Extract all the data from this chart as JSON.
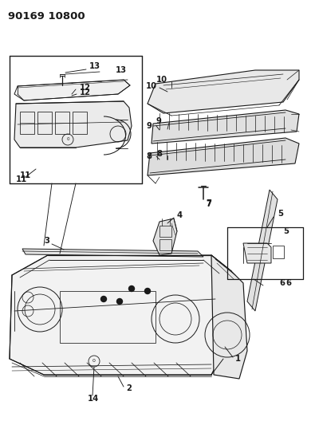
{
  "title": "90169 10800",
  "bg_color": "#ffffff",
  "line_color": "#1a1a1a",
  "figsize": [
    3.95,
    5.33
  ],
  "dpi": 100,
  "title_fontsize": 9.5,
  "label_fontsize": 7.2
}
